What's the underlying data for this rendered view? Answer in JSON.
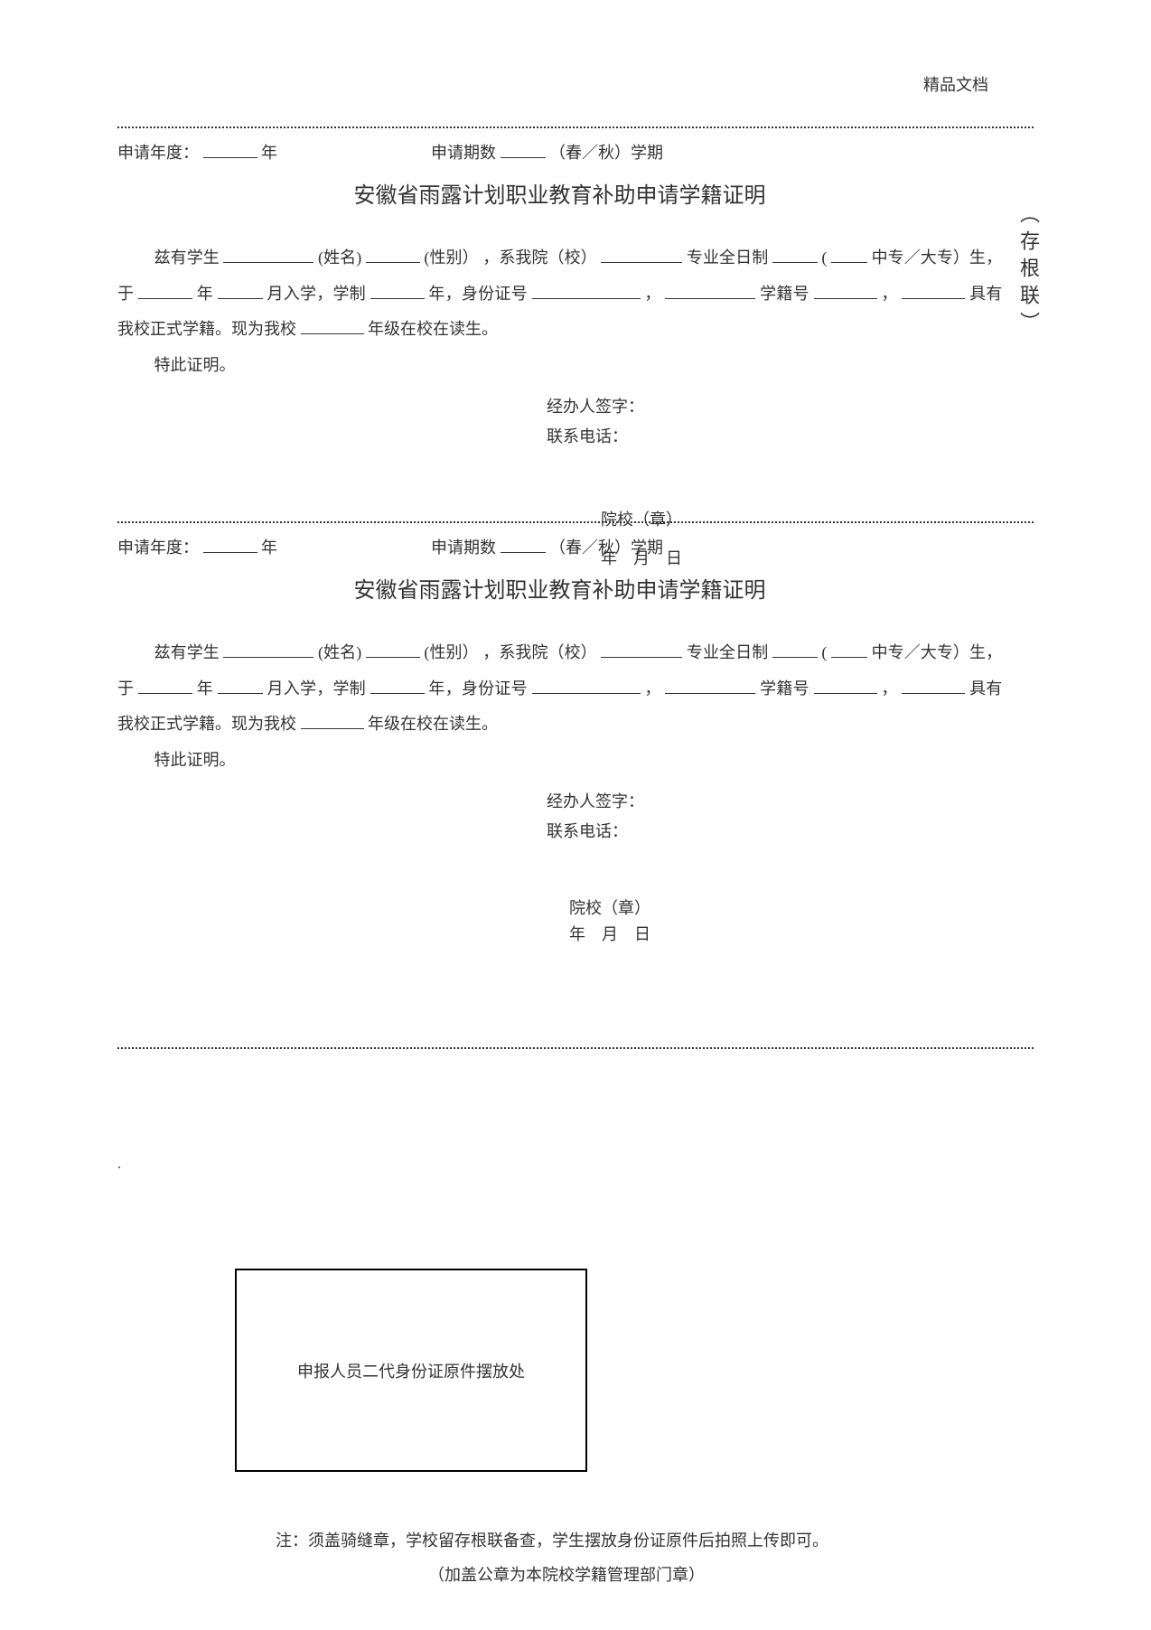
{
  "header": {
    "docLabel": "精品文档"
  },
  "verticalNote": "（存根联）",
  "form": {
    "applyYearLabel": "申请年度：",
    "yearSuffix": "年",
    "applyPeriodLabel": "申请期数",
    "periodSuffix": "（春／秋）学期",
    "title": "安徽省雨露计划职业教育补助申请学籍证明",
    "prefix": "兹有学生",
    "nameLabel": "(姓名)",
    "genderLabel": "(性别）",
    "collegePrefix": "，系我院（校）",
    "majorSuffix": "专业全日制",
    "paren": "(",
    "typeText": "中专／大专）生，于",
    "yearChar": "年",
    "monthText": "月入学，学制",
    "yearText2": "年，身份证号",
    "comma1": "，",
    "studentIdLabel": "学籍号",
    "comma2": "，",
    "hasStatus": "具有我校正式学籍。现为我校",
    "gradeSuffix": "年级在校在读生。",
    "hereby": "特此证明。",
    "signerLabel": "经办人签字：",
    "phoneLabel": "联系电话：",
    "stampLabel": "院校（章）",
    "dateLabel": "年　月　日"
  },
  "idBox": {
    "text": "申报人员二代身份证原件摆放处"
  },
  "footer": {
    "note1": "注：须盖骑缝章，学校留存根联备查，学生摆放身份证原件后拍照上传即可。",
    "note2": "（加盖公章为本院校学籍管理部门章）"
  },
  "dot": "."
}
